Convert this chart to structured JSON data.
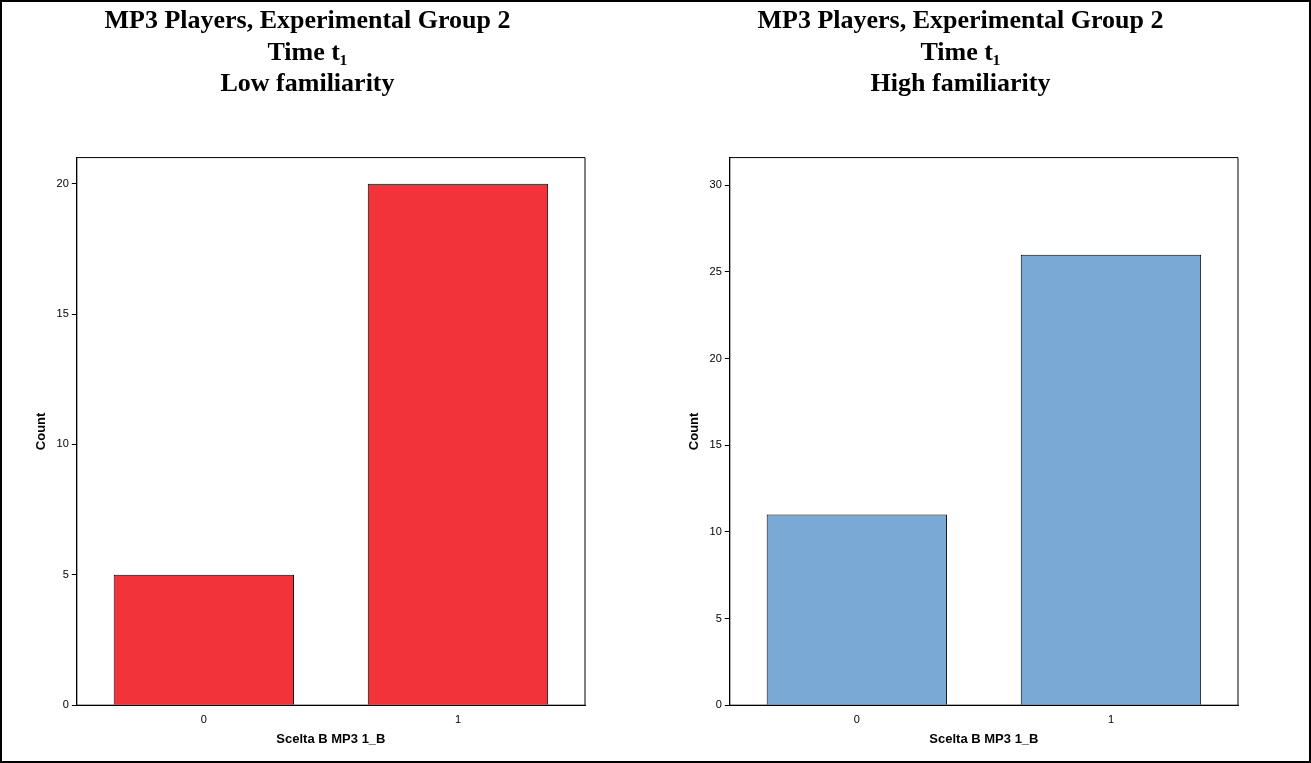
{
  "chart_data": [
    {
      "type": "bar",
      "title": [
        "MP3 Players, Experimental Group 2",
        "Time t₁",
        "Low familiarity"
      ],
      "xlabel": "Scelta B MP3 1_B",
      "ylabel": "Count",
      "categories": [
        "0",
        "1"
      ],
      "values": [
        5,
        20
      ],
      "color": "#f2333a",
      "ylim": [
        0,
        21
      ],
      "yticks": [
        0,
        5,
        10,
        15,
        20
      ],
      "grid": false,
      "legend": false
    },
    {
      "type": "bar",
      "title": [
        "MP3 Players, Experimental Group 2",
        "Time t₁",
        "High familiarity"
      ],
      "xlabel": "Scelta B MP3 1_B",
      "ylabel": "Count",
      "categories": [
        "0",
        "1"
      ],
      "values": [
        11,
        26
      ],
      "color": "#7ba9d6",
      "ylim": [
        0,
        31.6
      ],
      "yticks": [
        0,
        5,
        10,
        15,
        20,
        25,
        30
      ],
      "grid": false,
      "legend": false
    }
  ]
}
